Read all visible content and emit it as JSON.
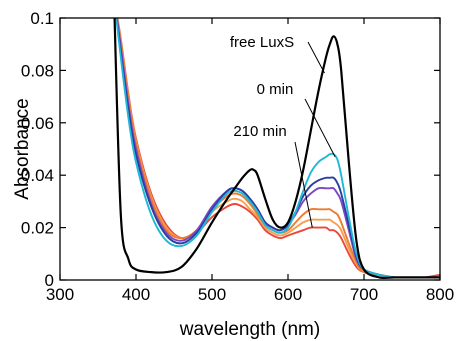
{
  "chart_data": {
    "type": "line",
    "title": "",
    "xlabel": "wavelength (nm)",
    "ylabel": "Absorbance",
    "xlim": [
      300,
      800
    ],
    "ylim": [
      0,
      0.1
    ],
    "xticks": [
      300,
      400,
      500,
      600,
      700,
      800
    ],
    "yticks": [
      0,
      0.02,
      0.04,
      0.06,
      0.08,
      0.1
    ],
    "xtick_labels": [
      "300",
      "400",
      "500",
      "600",
      "700",
      "800"
    ],
    "ytick_labels": [
      "0",
      "0.02",
      "0.04",
      "0.06",
      "0.08",
      "0.1"
    ],
    "grid": false,
    "legend": "none",
    "annotations": [
      {
        "text": "free LuxS",
        "target_x": 648,
        "target_y": 0.079
      },
      {
        "text": "0 min",
        "target_x": 662,
        "target_y": 0.047
      },
      {
        "text": "210 min",
        "target_x": 632,
        "target_y": 0.02
      }
    ],
    "series": [
      {
        "color": "#000000",
        "curve": "free",
        "x": [
          371,
          380,
          390,
          400,
          420,
          440,
          460,
          480,
          500,
          520,
          530,
          540,
          550,
          555,
          560,
          570,
          580,
          590,
          600,
          610,
          620,
          630,
          640,
          650,
          655,
          660,
          665,
          670,
          680,
          690,
          700,
          720,
          740,
          760,
          780,
          800
        ],
        "y": [
          0.108,
          0.025,
          0.008,
          0.004,
          0.003,
          0.003,
          0.005,
          0.012,
          0.022,
          0.031,
          0.035,
          0.039,
          0.042,
          0.042,
          0.04,
          0.031,
          0.023,
          0.02,
          0.022,
          0.03,
          0.042,
          0.057,
          0.072,
          0.085,
          0.09,
          0.093,
          0.09,
          0.08,
          0.045,
          0.015,
          0.004,
          0.001,
          0.001,
          0.001,
          0.001,
          0.001
        ]
      },
      {
        "color": "#1fb8d6",
        "curve": "t",
        "x": [
          371,
          380,
          390,
          400,
          420,
          440,
          460,
          480,
          500,
          520,
          530,
          540,
          550,
          560,
          570,
          580,
          590,
          600,
          610,
          620,
          630,
          640,
          650,
          655,
          660,
          665,
          670,
          680,
          690,
          700,
          720,
          740,
          760,
          780,
          800
        ],
        "y": [
          0.108,
          0.085,
          0.062,
          0.045,
          0.025,
          0.015,
          0.013,
          0.017,
          0.026,
          0.033,
          0.034,
          0.033,
          0.03,
          0.026,
          0.021,
          0.019,
          0.018,
          0.02,
          0.026,
          0.034,
          0.041,
          0.045,
          0.047,
          0.048,
          0.048,
          0.046,
          0.04,
          0.024,
          0.01,
          0.004,
          0.002,
          0.001,
          0.001,
          0.001,
          0.001
        ]
      },
      {
        "color": "#2a3ea0",
        "curve": "t",
        "x": [
          371,
          380,
          390,
          400,
          420,
          440,
          460,
          480,
          500,
          520,
          530,
          540,
          550,
          560,
          570,
          580,
          590,
          600,
          610,
          620,
          630,
          640,
          650,
          655,
          660,
          665,
          670,
          680,
          690,
          700,
          720,
          740,
          760,
          780,
          800
        ],
        "y": [
          0.108,
          0.087,
          0.065,
          0.048,
          0.028,
          0.017,
          0.014,
          0.018,
          0.027,
          0.034,
          0.035,
          0.034,
          0.031,
          0.027,
          0.022,
          0.02,
          0.019,
          0.021,
          0.026,
          0.032,
          0.036,
          0.038,
          0.039,
          0.039,
          0.039,
          0.037,
          0.033,
          0.021,
          0.009,
          0.004,
          0.002,
          0.001,
          0.001,
          0.001,
          0.001
        ]
      },
      {
        "color": "#7b49c2",
        "curve": "t",
        "x": [
          371,
          380,
          390,
          400,
          420,
          440,
          460,
          480,
          500,
          520,
          530,
          540,
          550,
          560,
          570,
          580,
          590,
          600,
          610,
          620,
          630,
          640,
          650,
          655,
          660,
          665,
          670,
          680,
          690,
          700,
          720,
          740,
          760,
          780,
          800
        ],
        "y": [
          0.108,
          0.089,
          0.067,
          0.05,
          0.029,
          0.018,
          0.015,
          0.019,
          0.028,
          0.034,
          0.035,
          0.034,
          0.031,
          0.027,
          0.022,
          0.02,
          0.019,
          0.021,
          0.025,
          0.03,
          0.033,
          0.035,
          0.035,
          0.035,
          0.035,
          0.033,
          0.03,
          0.019,
          0.008,
          0.004,
          0.002,
          0.001,
          0.001,
          0.001,
          0.001
        ]
      },
      {
        "color": "#f07a30",
        "curve": "t",
        "x": [
          371,
          380,
          390,
          400,
          420,
          440,
          460,
          480,
          500,
          520,
          530,
          540,
          550,
          560,
          570,
          580,
          590,
          600,
          610,
          620,
          630,
          640,
          650,
          655,
          660,
          665,
          670,
          680,
          690,
          700,
          720,
          740,
          760,
          780,
          800
        ],
        "y": [
          0.108,
          0.09,
          0.069,
          0.052,
          0.031,
          0.019,
          0.016,
          0.019,
          0.027,
          0.032,
          0.033,
          0.032,
          0.029,
          0.025,
          0.021,
          0.019,
          0.018,
          0.019,
          0.022,
          0.025,
          0.027,
          0.027,
          0.027,
          0.027,
          0.026,
          0.025,
          0.022,
          0.014,
          0.007,
          0.003,
          0.002,
          0.001,
          0.001,
          0.001,
          0.001
        ]
      },
      {
        "color": "#f4a050",
        "curve": "t",
        "x": [
          371,
          380,
          390,
          400,
          420,
          440,
          460,
          480,
          500,
          520,
          530,
          540,
          550,
          560,
          570,
          580,
          590,
          600,
          610,
          620,
          630,
          640,
          650,
          655,
          660,
          665,
          670,
          680,
          690,
          700,
          720,
          740,
          760,
          780,
          800
        ],
        "y": [
          0.108,
          0.091,
          0.07,
          0.053,
          0.032,
          0.02,
          0.016,
          0.019,
          0.026,
          0.03,
          0.031,
          0.03,
          0.027,
          0.024,
          0.02,
          0.018,
          0.017,
          0.018,
          0.02,
          0.022,
          0.023,
          0.023,
          0.023,
          0.023,
          0.022,
          0.021,
          0.019,
          0.012,
          0.006,
          0.003,
          0.002,
          0.001,
          0.001,
          0.001,
          0.001
        ]
      },
      {
        "color": "#e8493a",
        "curve": "t",
        "x": [
          371,
          380,
          390,
          400,
          420,
          440,
          460,
          480,
          500,
          520,
          530,
          540,
          550,
          560,
          570,
          580,
          590,
          600,
          610,
          620,
          630,
          640,
          650,
          655,
          660,
          665,
          670,
          680,
          690,
          700,
          720,
          740,
          760,
          780,
          800
        ],
        "y": [
          0.108,
          0.092,
          0.071,
          0.054,
          0.033,
          0.021,
          0.016,
          0.018,
          0.024,
          0.028,
          0.029,
          0.028,
          0.026,
          0.023,
          0.019,
          0.017,
          0.016,
          0.017,
          0.018,
          0.019,
          0.02,
          0.02,
          0.02,
          0.019,
          0.019,
          0.018,
          0.016,
          0.01,
          0.005,
          0.003,
          0.002,
          0.001,
          0.001,
          0.001,
          0.002
        ]
      }
    ]
  }
}
